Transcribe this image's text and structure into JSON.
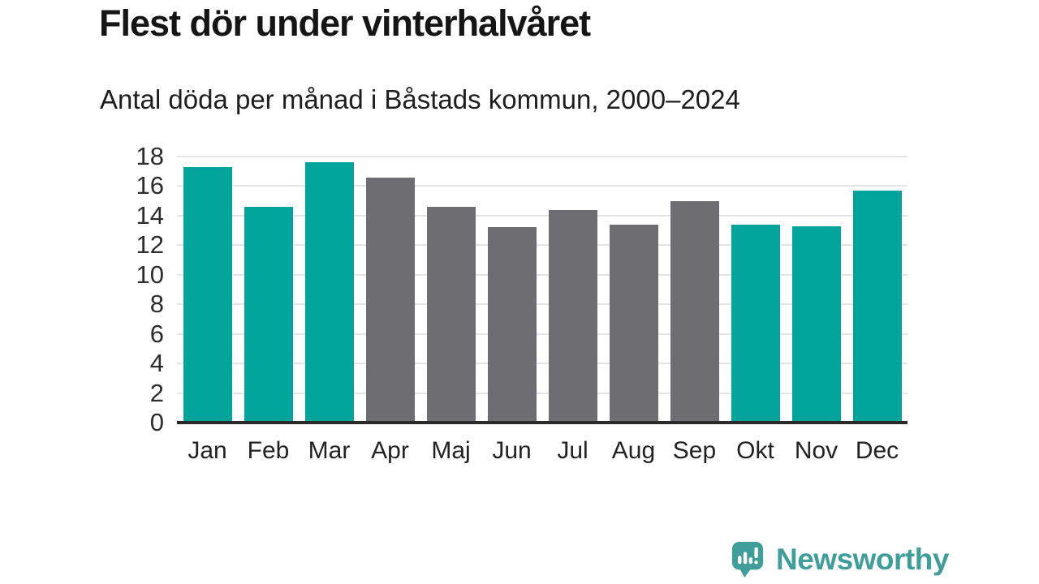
{
  "page": {
    "title": "Flest dör under vinterhalvåret",
    "subtitle": "Antal döda per månad i Båstads kommun, 2000–2024"
  },
  "branding": {
    "logo_text": "Newsworthy",
    "logo_icon": "newsworthy-speech-bubble-chart-icon",
    "logo_color": "#3f9e9a"
  },
  "chart_data": {
    "type": "bar",
    "title": "Flest dör under vinterhalvåret",
    "subtitle": "Antal döda per månad i Båstads kommun, 2000–2024",
    "categories": [
      "Jan",
      "Feb",
      "Mar",
      "Apr",
      "Maj",
      "Jun",
      "Jul",
      "Aug",
      "Sep",
      "Okt",
      "Nov",
      "Dec"
    ],
    "values": [
      17.3,
      14.6,
      17.6,
      16.6,
      14.6,
      13.2,
      14.4,
      13.4,
      15.0,
      13.4,
      13.3,
      15.7
    ],
    "bar_color_keys": [
      "highlight",
      "highlight",
      "highlight",
      "base",
      "base",
      "base",
      "base",
      "base",
      "base",
      "highlight",
      "highlight",
      "highlight"
    ],
    "palette": {
      "highlight": "#00a49b",
      "base": "#6e6e72"
    },
    "xlabel": "",
    "ylabel": "",
    "ylim": [
      0,
      18
    ],
    "ytick_step": 2,
    "grid": "horizontal",
    "gridline_color": "#e4e4e4",
    "axis_line_color": "#2b2b2b",
    "legend": "none"
  }
}
